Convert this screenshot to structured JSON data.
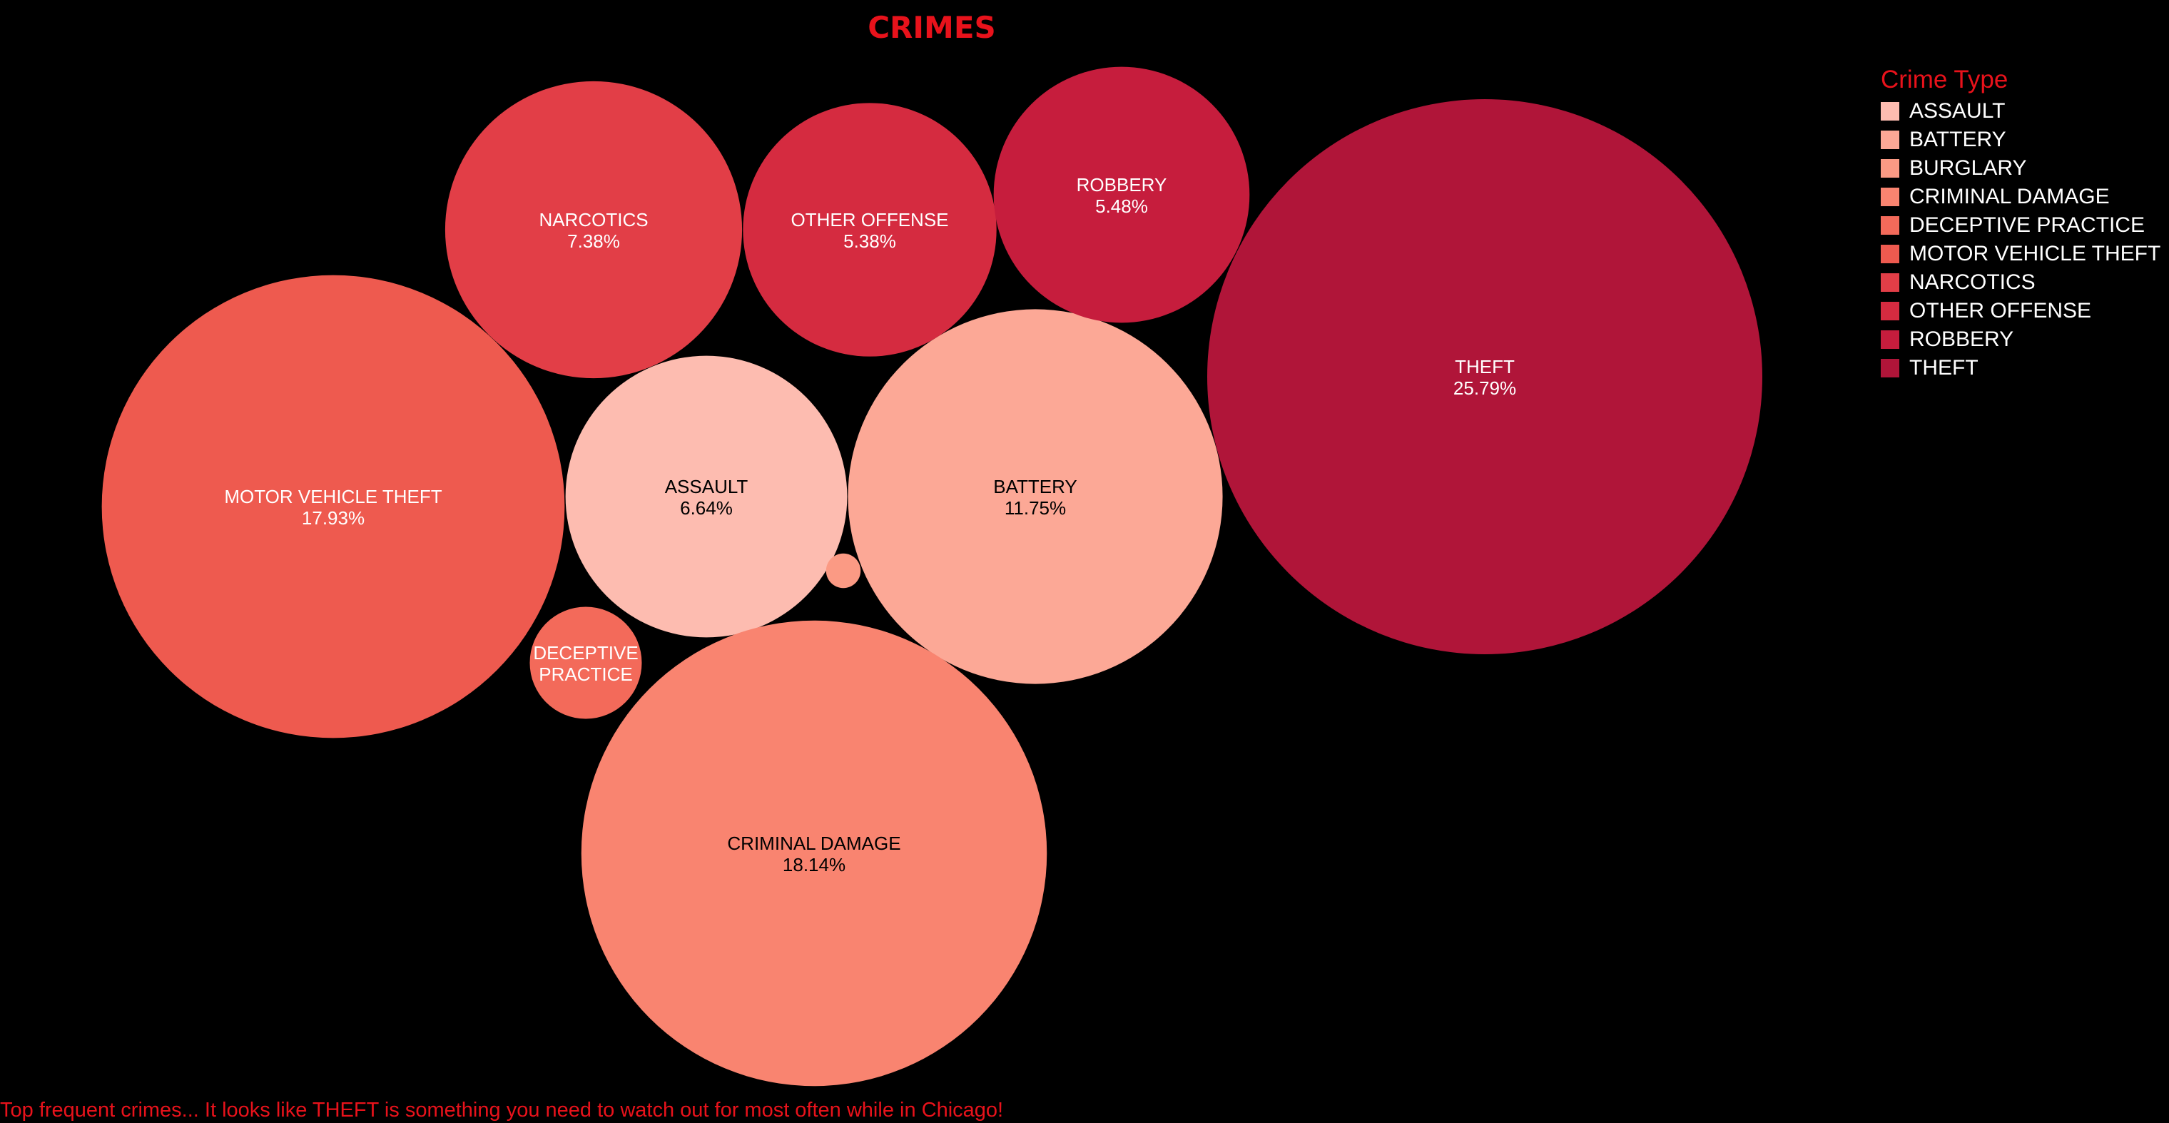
{
  "title": "CRIMES",
  "chart_data": {
    "type": "bubble",
    "title": "CRIMES",
    "unit": "percent of total",
    "items": [
      {
        "label": "ASSAULT",
        "value": 6.64,
        "pct_label": "6.64%",
        "color": "#fdbcb0",
        "text_color": "#000000"
      },
      {
        "label": "BATTERY",
        "value": 11.75,
        "pct_label": "11.75%",
        "color": "#fca896",
        "text_color": "#000000"
      },
      {
        "label": "BURGLARY",
        "value": 0.1,
        "pct_label": "",
        "color": "#fb9a84",
        "text_color": "#000000"
      },
      {
        "label": "CRIMINAL DAMAGE",
        "value": 18.14,
        "pct_label": "18.14%",
        "color": "#f98470",
        "text_color": "#000000"
      },
      {
        "label": "DECEPTIVE PRACTICE",
        "value": 1.05,
        "pct_label": "",
        "color": "#f36a5a",
        "text_color": "#ffffff"
      },
      {
        "label": "MOTOR VEHICLE THEFT",
        "value": 17.93,
        "pct_label": "17.93%",
        "color": "#ee5a4f",
        "text_color": "#ffffff"
      },
      {
        "label": "NARCOTICS",
        "value": 7.38,
        "pct_label": "7.38%",
        "color": "#e23e47",
        "text_color": "#ffffff"
      },
      {
        "label": "OTHER OFFENSE",
        "value": 5.38,
        "pct_label": "5.38%",
        "color": "#d52b40",
        "text_color": "#ffffff"
      },
      {
        "label": "ROBBERY",
        "value": 5.48,
        "pct_label": "5.48%",
        "color": "#c61d3d",
        "text_color": "#ffffff"
      },
      {
        "label": "THEFT",
        "value": 25.79,
        "pct_label": "25.79%",
        "color": "#b01539",
        "text_color": "#ffffff"
      }
    ],
    "legend_title": "Crime Type",
    "legend_position": "right"
  },
  "caption": "Top frequent crimes... It looks like THEFT is something you need to watch out for most often while in Chicago!"
}
